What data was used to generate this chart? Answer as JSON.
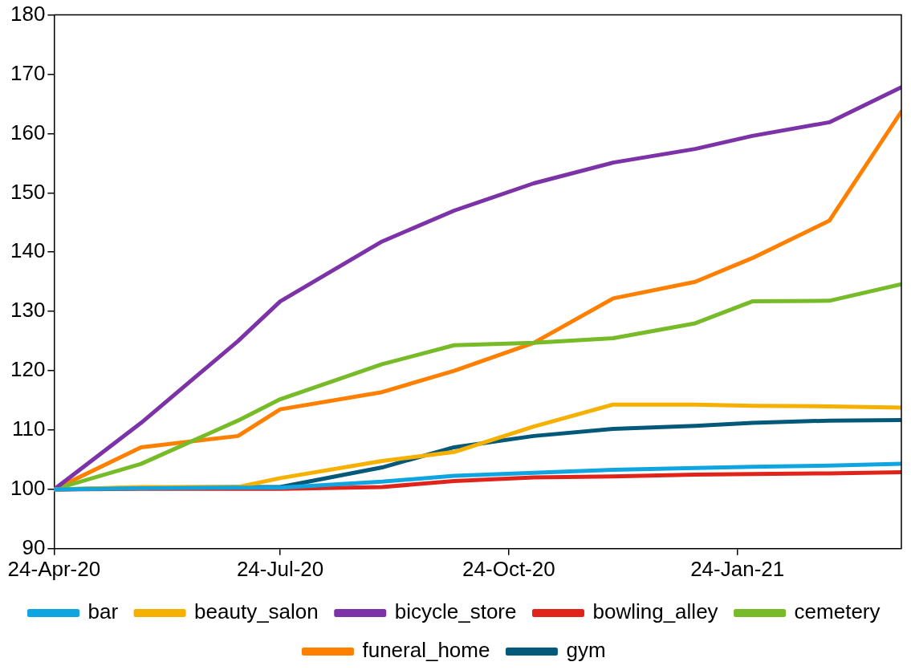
{
  "chart_data": {
    "type": "line",
    "x": [
      "2020-04-24",
      "2020-05-29",
      "2020-07-07",
      "2020-07-24",
      "2020-09-03",
      "2020-10-02",
      "2020-11-03",
      "2020-12-05",
      "2021-01-07",
      "2021-01-30",
      "2021-03-02",
      "2021-03-31"
    ],
    "series": [
      {
        "name": "bar",
        "color": "#0ea5e0",
        "values": [
          100,
          100.2,
          100.3,
          100.3,
          101.3,
          102.3,
          102.8,
          103.3,
          103.6,
          103.8,
          104,
          104.3
        ]
      },
      {
        "name": "beauty_salon",
        "color": "#f5b000",
        "values": [
          100,
          100.4,
          100.4,
          101.9,
          104.8,
          106.3,
          110.6,
          114.3,
          114.3,
          114.1,
          114,
          113.8
        ]
      },
      {
        "name": "bicycle_store",
        "color": "#7d33a8",
        "values": [
          100,
          111.2,
          125,
          131.7,
          141.8,
          147,
          151.6,
          155.1,
          157.4,
          159.6,
          161.9,
          167.8
        ]
      },
      {
        "name": "bowling_alley",
        "color": "#e0241b",
        "values": [
          100,
          100.1,
          100.1,
          100.1,
          100.4,
          101.4,
          102,
          102.2,
          102.5,
          102.6,
          102.7,
          102.9
        ]
      },
      {
        "name": "cemetery",
        "color": "#77bb28",
        "values": [
          100,
          104.3,
          111.6,
          115.2,
          121.1,
          124.3,
          124.7,
          125.5,
          128,
          131.7,
          131.8,
          134.6
        ]
      },
      {
        "name": "funeral_home",
        "color": "#ff8000",
        "values": [
          100,
          107.1,
          109,
          113.5,
          116.4,
          120,
          124.7,
          132.2,
          135,
          139,
          145.3,
          163.7
        ]
      },
      {
        "name": "gym",
        "color": "#04587a",
        "values": [
          100,
          100.3,
          100.4,
          100.4,
          103.7,
          107.1,
          109,
          110.2,
          110.7,
          111.2,
          111.6,
          111.7
        ]
      }
    ],
    "xlim": [
      "2020-04-24",
      "2021-03-31"
    ],
    "xticks": [
      {
        "value": "2020-04-24",
        "label": "24-Apr-20"
      },
      {
        "value": "2020-07-24",
        "label": "24-Jul-20"
      },
      {
        "value": "2020-10-24",
        "label": "24-Oct-20"
      },
      {
        "value": "2021-01-24",
        "label": "24-Jan-21"
      }
    ],
    "ylim": [
      90,
      180
    ],
    "yticks": [
      90,
      100,
      110,
      120,
      130,
      140,
      150,
      160,
      170,
      180
    ],
    "grid": false,
    "legend": "bottom",
    "marker": "none",
    "line_style": "solid"
  }
}
